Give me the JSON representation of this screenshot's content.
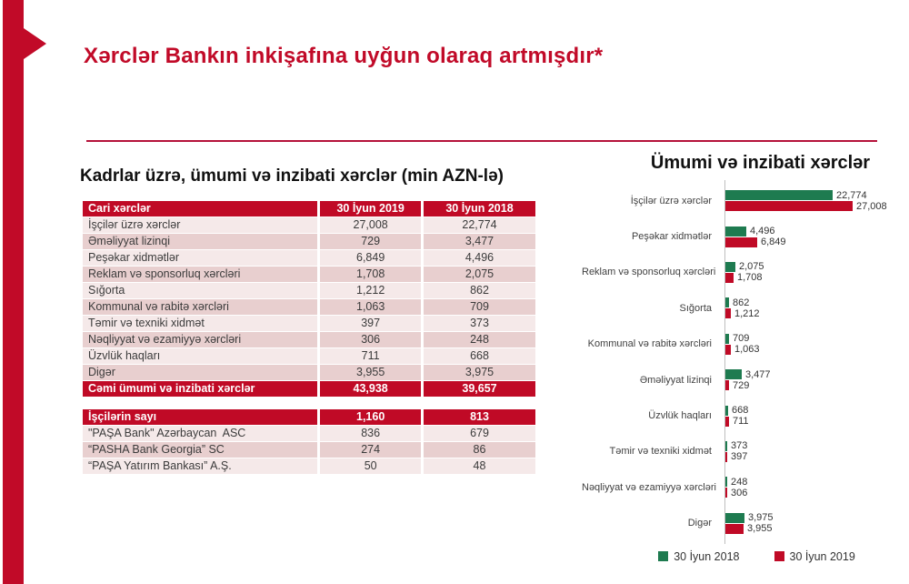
{
  "colors": {
    "brand_red": "#c10a28",
    "table_red": "#c00a26",
    "series_green": "#1e7b50",
    "series_red": "#c00a26",
    "row_light": "#f5e9e9",
    "row_dark": "#e8cfcf",
    "axis_gray": "#bfbfbf"
  },
  "slide": {
    "title": "Xərclər Bankın inkişafına uyğun olaraq artmışdır*"
  },
  "table": {
    "title": "Kadrlar üzrə, ümumi və inzibati xərclər (min AZN-lə)",
    "header": {
      "label": "Cari xərclər",
      "col2019": "30 İyun 2019",
      "col2018": "30 İyun 2018"
    },
    "rows": [
      {
        "label": "İşçilər üzrə xərclər",
        "v2019": "27,008",
        "v2018": "22,774"
      },
      {
        "label": "Əməliyyat lizinqi",
        "v2019": "729",
        "v2018": "3,477"
      },
      {
        "label": "Peşəkar xidmətlər",
        "v2019": "6,849",
        "v2018": "4,496"
      },
      {
        "label": "Reklam və sponsorluq xərcləri",
        "v2019": "1,708",
        "v2018": "2,075"
      },
      {
        "label": "Sığorta",
        "v2019": "1,212",
        "v2018": "862"
      },
      {
        "label": "Kommunal və rabitə xərcləri",
        "v2019": "1,063",
        "v2018": "709"
      },
      {
        "label": "Təmir və texniki xidmət",
        "v2019": "397",
        "v2018": "373"
      },
      {
        "label": "Nəqliyyat və ezamiyyə xərcləri",
        "v2019": "306",
        "v2018": "248"
      },
      {
        "label": "Üzvlük haqları",
        "v2019": "711",
        "v2018": "668"
      },
      {
        "label": "Digər",
        "v2019": "3,955",
        "v2018": "3,975"
      }
    ],
    "total_row": {
      "label": "Cəmi ümumi və inzibati xərclər",
      "v2019": "43,938",
      "v2018": "39,657"
    },
    "staff": {
      "header": {
        "label": "İşçilərin sayı",
        "v2019": "1,160",
        "v2018": "813"
      },
      "rows": [
        {
          "label": "\"PAŞA Bank\" Azərbaycan  ASC",
          "v2019": "836",
          "v2018": "679"
        },
        {
          "label": "“PASHA Bank Georgia” SC",
          "v2019": "274",
          "v2018": "86"
        },
        {
          "label": "“PAŞA Yatırım Bankası” A.Ş.",
          "v2019": "50",
          "v2018": "48"
        }
      ]
    }
  },
  "chart_data": {
    "type": "bar",
    "orientation": "horizontal",
    "title": "Ümumi və inzibati xərclər",
    "categories": [
      "İşçilər üzrə xərclər",
      "Peşəkar xidmətlər",
      "Reklam və sponsorluq xərcləri",
      "Sığorta",
      "Kommunal və rabitə xərcləri",
      "Əməliyyat lizinqi",
      "Üzvlük haqları",
      "Təmir və texniki xidmət",
      "Nəqliyyat və ezamiyyə xərcləri",
      "Digər"
    ],
    "series": [
      {
        "name": "30 İyun 2018",
        "color": "#1e7b50",
        "values": [
          22774,
          4496,
          2075,
          862,
          709,
          3477,
          668,
          373,
          248,
          3975
        ]
      },
      {
        "name": "30 İyun 2019",
        "color": "#c00a26",
        "values": [
          27008,
          6849,
          1708,
          1212,
          1063,
          729,
          711,
          397,
          306,
          3955
        ]
      }
    ],
    "xlim": [
      0,
      28000
    ],
    "grid": false,
    "value_labels": true,
    "legend_position": "bottom"
  }
}
